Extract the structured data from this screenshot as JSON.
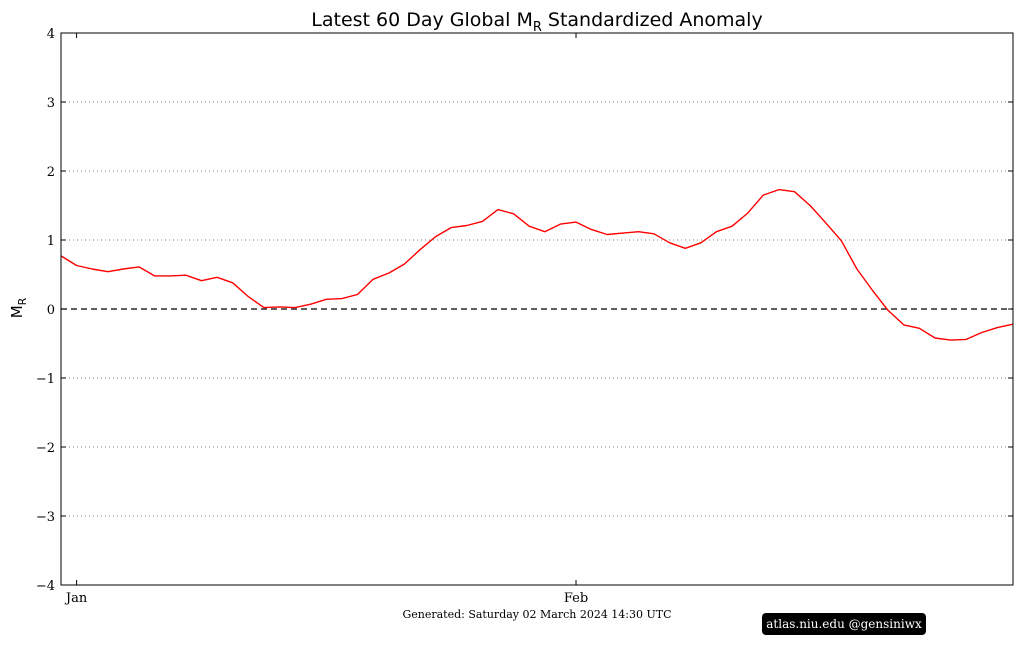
{
  "chart_data": {
    "type": "line",
    "title_main": "Latest 60 Day Global M",
    "title_subscript": "R",
    "title_rest": "Standardized Anomaly",
    "ylabel_main": "M",
    "ylabel_subscript": "R",
    "xlabel": "",
    "ylim": [
      -4,
      4
    ],
    "yticks": [
      -4,
      -3,
      -2,
      -1,
      0,
      1,
      2,
      3,
      4
    ],
    "ytick_labels": [
      "−4",
      "−3",
      "−2",
      "−1",
      "0",
      "1",
      "2",
      "3",
      "4"
    ],
    "xlim": [
      0,
      61
    ],
    "xticks": [
      {
        "x": 1,
        "label": "Jan"
      },
      {
        "x": 33,
        "label": "Feb"
      }
    ],
    "grid": "horizontal dotted",
    "zero_line": "dashed black",
    "series": [
      {
        "color": "#ff0000",
        "x": [
          0,
          1,
          2,
          3,
          4,
          5,
          6,
          7,
          8,
          9,
          10,
          11,
          12,
          13,
          14,
          15,
          16,
          17,
          18,
          19,
          20,
          21,
          22,
          23,
          24,
          25,
          26,
          27,
          28,
          29,
          30,
          31,
          32,
          33,
          34,
          35,
          36,
          37,
          38,
          39,
          40,
          41,
          42,
          43,
          44,
          45,
          46,
          47,
          48,
          49,
          50,
          51,
          52,
          53,
          54,
          55,
          56,
          57,
          58,
          59,
          60,
          61
        ],
        "values": [
          0.77,
          0.63,
          0.58,
          0.54,
          0.58,
          0.61,
          0.48,
          0.48,
          0.49,
          0.41,
          0.46,
          0.38,
          0.18,
          0.02,
          0.03,
          0.02,
          0.07,
          0.14,
          0.15,
          0.21,
          0.43,
          0.52,
          0.65,
          0.86,
          1.05,
          1.18,
          1.21,
          1.27,
          1.44,
          1.38,
          1.2,
          1.12,
          1.23,
          1.26,
          1.15,
          1.08,
          1.1,
          1.12,
          1.09,
          0.96,
          0.88,
          0.96,
          1.12,
          1.2,
          1.39,
          1.65,
          1.73,
          1.7,
          1.5,
          1.25,
          0.99,
          0.58,
          0.27,
          -0.02,
          -0.23,
          -0.28,
          -0.42,
          -0.45,
          -0.44,
          -0.34,
          -0.27,
          -0.22
        ]
      }
    ]
  },
  "footer": {
    "generated": "Generated: Saturday  02  March  2024  14:30 UTC",
    "credit": "atlas.niu.edu  @gensiniwx"
  }
}
